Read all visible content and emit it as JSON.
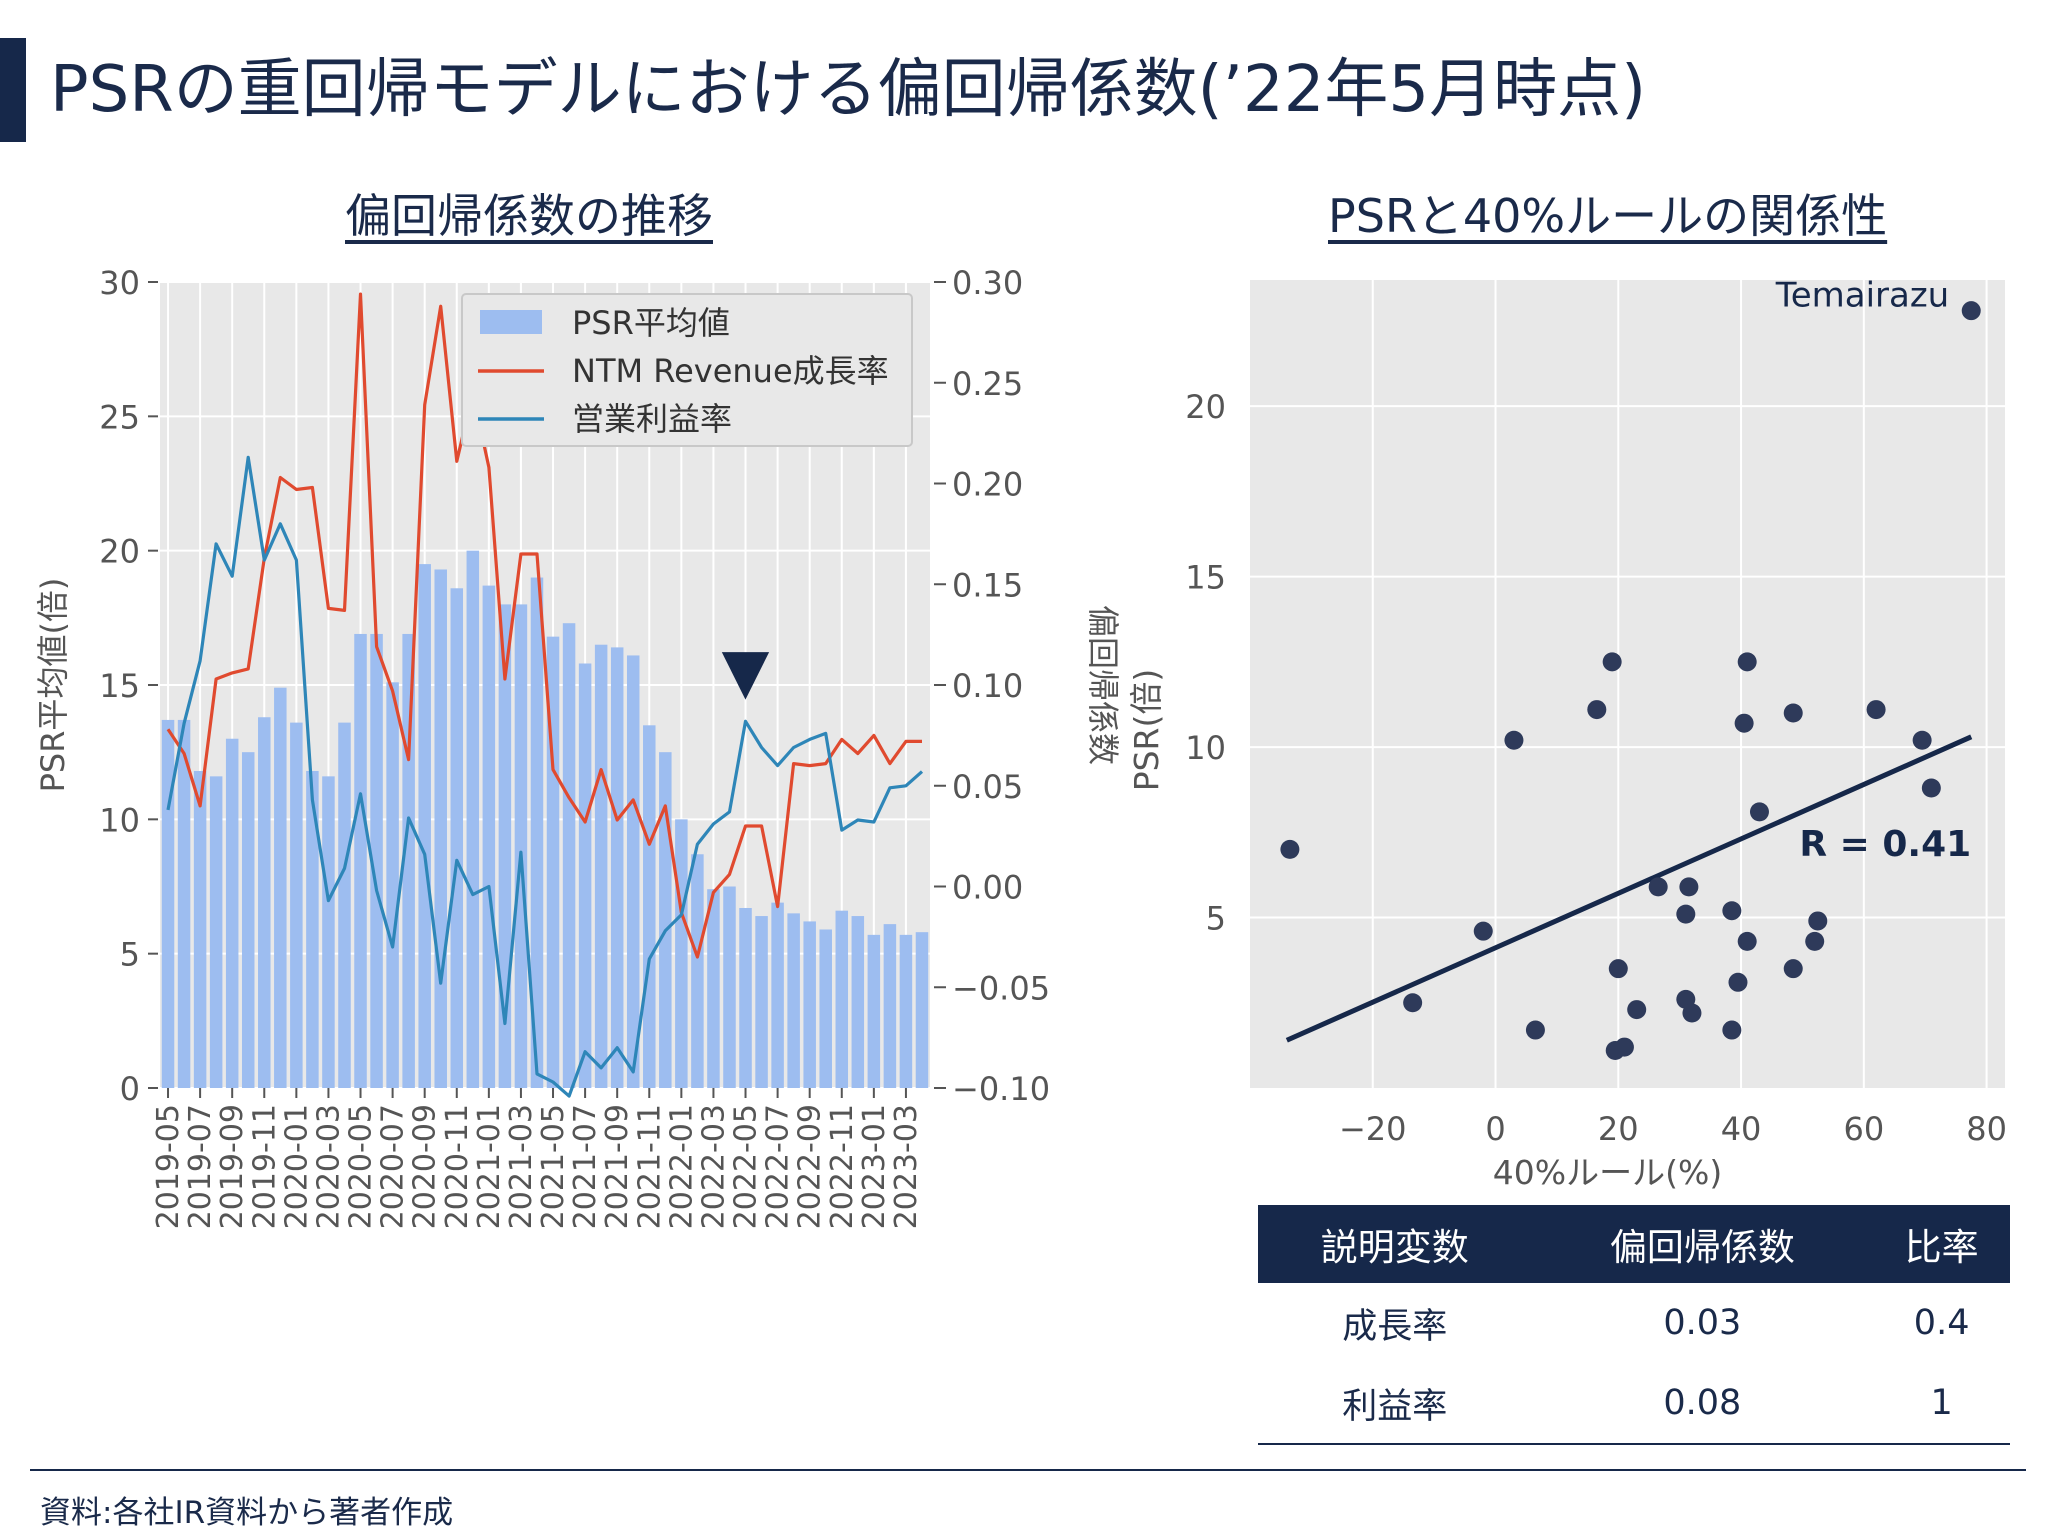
{
  "page": {
    "title": "PSRの重回帰モデルにおける偏回帰係数(’22年5月時点)",
    "source": "資料:各社IR資料から著者作成"
  },
  "left_chart_title": "偏回帰係数の推移",
  "right_chart_title": "PSRと40%ルールの関係性",
  "colors": {
    "navy": "#16284a",
    "bar": "#9dbdf0",
    "red": "#e04a2f",
    "blue": "#2e86b8",
    "plot_bg": "#e8e8e8"
  },
  "chart_data": [
    {
      "type": "bar+line",
      "title": "偏回帰係数の推移",
      "ylabel": "PSR平均値(倍)",
      "y2label": "偏回帰係数",
      "ylim": [
        0,
        30
      ],
      "y2lim": [
        -0.1,
        0.3
      ],
      "yticks": [
        0,
        5,
        10,
        15,
        20,
        25,
        30
      ],
      "y2ticks": [
        "−0.10",
        "−0.05",
        "0.00",
        "0.05",
        "0.10",
        "0.15",
        "0.20",
        "0.25",
        "0.30"
      ],
      "grid": true,
      "legend_position": "top-right",
      "marker": "▼",
      "categories": [
        "2019-05",
        "2019-06",
        "2019-07",
        "2019-08",
        "2019-09",
        "2019-10",
        "2019-11",
        "2019-12",
        "2020-01",
        "2020-02",
        "2020-03",
        "2020-04",
        "2020-05",
        "2020-06",
        "2020-07",
        "2020-08",
        "2020-09",
        "2020-10",
        "2020-11",
        "2020-12",
        "2021-01",
        "2021-02",
        "2021-03",
        "2021-04",
        "2021-05",
        "2021-06",
        "2021-07",
        "2021-08",
        "2021-09",
        "2021-10",
        "2021-11",
        "2021-12",
        "2022-01",
        "2022-02",
        "2022-03",
        "2022-04",
        "2022-05",
        "2022-06",
        "2022-07",
        "2022-08",
        "2022-09",
        "2022-10",
        "2022-11",
        "2022-12",
        "2023-01",
        "2023-02",
        "2023-03",
        "2023-04"
      ],
      "tick_labels": [
        "2019-05",
        "2019-07",
        "2019-09",
        "2019-11",
        "2020-01",
        "2020-03",
        "2020-05",
        "2020-07",
        "2020-09",
        "2020-11",
        "2021-01",
        "2021-03",
        "2021-05",
        "2021-07",
        "2021-09",
        "2021-11",
        "2022-01",
        "2022-03",
        "2022-05",
        "2022-07",
        "2022-09",
        "2022-11",
        "2023-01",
        "2023-03"
      ],
      "series": [
        {
          "name": "PSR平均値",
          "kind": "bar",
          "axis": "left",
          "values": [
            13.7,
            13.7,
            11.8,
            11.6,
            13.0,
            12.5,
            13.8,
            14.9,
            13.6,
            11.8,
            11.6,
            13.6,
            16.9,
            16.9,
            15.1,
            16.9,
            19.5,
            19.3,
            18.6,
            20.0,
            18.7,
            18.0,
            18.0,
            19.0,
            16.8,
            17.3,
            15.8,
            16.5,
            16.4,
            16.1,
            13.5,
            12.5,
            10.0,
            8.7,
            7.4,
            7.5,
            6.7,
            6.4,
            6.9,
            6.5,
            6.2,
            5.9,
            6.6,
            6.4,
            5.7,
            6.1,
            5.7,
            5.8
          ]
        },
        {
          "name": "NTM Revenue成長率",
          "kind": "line",
          "axis": "right",
          "values": [
            0.078,
            0.066,
            0.04,
            0.103,
            0.106,
            0.108,
            0.163,
            0.203,
            0.197,
            0.198,
            0.138,
            0.137,
            0.294,
            0.119,
            0.097,
            0.063,
            0.239,
            0.288,
            0.211,
            0.245,
            0.208,
            0.103,
            0.165,
            0.165,
            0.058,
            0.044,
            0.032,
            0.058,
            0.033,
            0.043,
            0.021,
            0.04,
            -0.013,
            -0.035,
            -0.003,
            0.006,
            0.03,
            0.03,
            -0.01,
            0.061,
            0.06,
            0.061,
            0.073,
            0.066,
            0.075,
            0.061,
            0.072,
            0.072
          ]
        },
        {
          "name": "営業利益率",
          "kind": "line",
          "axis": "right",
          "values": [
            0.038,
            0.081,
            0.112,
            0.17,
            0.154,
            0.213,
            0.162,
            0.18,
            0.162,
            0.043,
            -0.007,
            0.009,
            0.046,
            -0.002,
            -0.03,
            0.034,
            0.016,
            -0.048,
            0.013,
            -0.004,
            0.0,
            -0.068,
            0.017,
            -0.093,
            -0.097,
            -0.104,
            -0.082,
            -0.09,
            -0.08,
            -0.092,
            -0.036,
            -0.022,
            -0.014,
            0.021,
            0.031,
            0.037,
            0.082,
            0.069,
            0.06,
            0.069,
            0.073,
            0.076,
            0.028,
            0.033,
            0.032,
            0.049,
            0.05,
            0.057
          ]
        }
      ]
    },
    {
      "type": "scatter",
      "title": "PSRと40%ルールの関係性",
      "xlabel": "40%ルール(%)",
      "ylabel": "PSR(倍)",
      "xlim": [
        -40,
        83
      ],
      "ylim": [
        0,
        23.7
      ],
      "xticks": [
        -20,
        0,
        20,
        40,
        60,
        80
      ],
      "xtick_labels": [
        "−20",
        "0",
        "20",
        "40",
        "60",
        "80"
      ],
      "yticks": [
        5,
        10,
        15,
        20
      ],
      "grid": true,
      "annotation": "R = 0.41",
      "point_label": {
        "text": "Temairazu",
        "x": 77.5,
        "y": 22.8
      },
      "trend_line": {
        "x": [
          -34,
          77.5
        ],
        "y": [
          1.4,
          10.3
        ]
      },
      "points": [
        {
          "x": -33.5,
          "y": 7.0
        },
        {
          "x": -13.5,
          "y": 2.5
        },
        {
          "x": -2,
          "y": 4.6
        },
        {
          "x": 3,
          "y": 10.2
        },
        {
          "x": 6.5,
          "y": 1.7
        },
        {
          "x": 16.5,
          "y": 11.1
        },
        {
          "x": 19,
          "y": 12.5
        },
        {
          "x": 19.5,
          "y": 1.1
        },
        {
          "x": 20,
          "y": 3.5
        },
        {
          "x": 21,
          "y": 1.2
        },
        {
          "x": 23,
          "y": 2.3
        },
        {
          "x": 26.5,
          "y": 5.9
        },
        {
          "x": 31,
          "y": 2.6
        },
        {
          "x": 31,
          "y": 5.1
        },
        {
          "x": 31.5,
          "y": 5.9
        },
        {
          "x": 32,
          "y": 2.2
        },
        {
          "x": 38.5,
          "y": 1.7
        },
        {
          "x": 38.5,
          "y": 5.2
        },
        {
          "x": 39.5,
          "y": 3.1
        },
        {
          "x": 40.5,
          "y": 10.7
        },
        {
          "x": 41,
          "y": 12.5
        },
        {
          "x": 41,
          "y": 4.3
        },
        {
          "x": 43,
          "y": 8.1
        },
        {
          "x": 48.5,
          "y": 3.5
        },
        {
          "x": 48.5,
          "y": 11.0
        },
        {
          "x": 52,
          "y": 4.3
        },
        {
          "x": 52.5,
          "y": 4.9
        },
        {
          "x": 62,
          "y": 11.1
        },
        {
          "x": 69.5,
          "y": 10.2
        },
        {
          "x": 71,
          "y": 8.8
        },
        {
          "x": 77.5,
          "y": 22.8
        }
      ]
    }
  ],
  "table": {
    "headers": [
      "説明変数",
      "偏回帰係数",
      "比率"
    ],
    "rows": [
      [
        "成長率",
        "0.03",
        "0.4"
      ],
      [
        "利益率",
        "0.08",
        "1"
      ]
    ]
  }
}
